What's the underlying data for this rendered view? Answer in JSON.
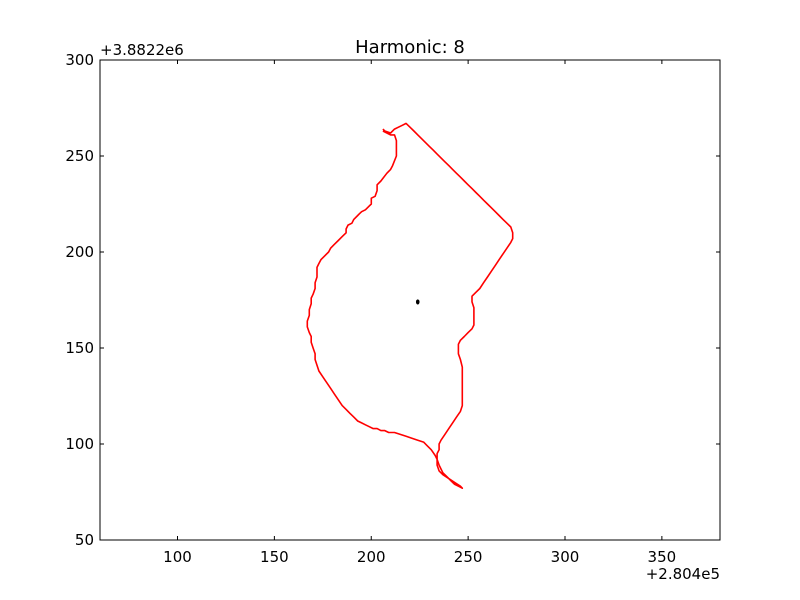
{
  "chart_data": {
    "type": "line",
    "title": "Harmonic: 8",
    "xlim": [
      60,
      380
    ],
    "ylim": [
      50,
      300
    ],
    "x_ticks": [
      100,
      150,
      200,
      250,
      300,
      350
    ],
    "y_ticks": [
      50,
      100,
      150,
      200,
      250,
      300
    ],
    "x_tick_labels": [
      "100",
      "150",
      "200",
      "250",
      "300",
      "350"
    ],
    "y_tick_labels": [
      "50",
      "100",
      "150",
      "200",
      "250",
      "300"
    ],
    "x_offset_label": "+2.804e5",
    "y_offset_label": "+3.8822e6",
    "grid": false,
    "series": [
      {
        "color": "#ff0000",
        "style": "line",
        "points": [
          [
            206,
            263
          ],
          [
            210,
            261
          ],
          [
            212,
            261
          ],
          [
            213,
            258
          ],
          [
            213,
            250
          ],
          [
            211,
            245
          ],
          [
            210,
            243
          ],
          [
            208,
            241
          ],
          [
            205,
            237
          ],
          [
            203,
            235
          ],
          [
            203,
            232
          ],
          [
            202,
            229
          ],
          [
            200,
            228
          ],
          [
            200,
            225
          ],
          [
            199,
            224
          ],
          [
            197,
            222
          ],
          [
            195,
            221
          ],
          [
            194,
            220
          ],
          [
            193,
            219
          ],
          [
            191,
            217
          ],
          [
            190,
            215
          ],
          [
            188,
            214
          ],
          [
            187,
            212
          ],
          [
            187,
            210
          ],
          [
            185,
            208
          ],
          [
            183,
            206
          ],
          [
            181,
            204
          ],
          [
            179,
            202
          ],
          [
            178,
            200
          ],
          [
            176,
            198
          ],
          [
            174,
            196
          ],
          [
            173,
            194
          ],
          [
            172,
            192
          ],
          [
            172,
            190
          ],
          [
            172,
            187
          ],
          [
            171,
            184
          ],
          [
            171,
            181
          ],
          [
            170,
            178
          ],
          [
            169,
            176
          ],
          [
            169,
            173
          ],
          [
            168,
            170
          ],
          [
            168,
            167
          ],
          [
            167,
            164
          ],
          [
            167,
            161
          ],
          [
            168,
            158
          ],
          [
            169,
            156
          ],
          [
            169,
            153
          ],
          [
            170,
            150
          ],
          [
            171,
            147
          ],
          [
            171,
            144
          ],
          [
            172,
            141
          ],
          [
            173,
            138
          ],
          [
            175,
            135
          ],
          [
            177,
            132
          ],
          [
            179,
            129
          ],
          [
            181,
            126
          ],
          [
            183,
            123
          ],
          [
            185,
            120
          ],
          [
            187,
            118
          ],
          [
            189,
            116
          ],
          [
            191,
            114
          ],
          [
            193,
            112
          ],
          [
            195,
            111
          ],
          [
            197,
            110
          ],
          [
            199,
            109
          ],
          [
            201,
            108
          ],
          [
            203,
            108
          ],
          [
            205,
            107
          ],
          [
            207,
            107
          ],
          [
            209,
            106
          ],
          [
            212,
            106
          ],
          [
            215,
            105
          ],
          [
            218,
            104
          ],
          [
            221,
            103
          ],
          [
            224,
            102
          ],
          [
            227,
            101
          ],
          [
            229,
            99
          ],
          [
            231,
            97
          ],
          [
            233,
            94
          ],
          [
            234,
            92
          ],
          [
            235,
            89
          ],
          [
            236,
            87
          ],
          [
            237,
            85
          ],
          [
            239,
            83
          ],
          [
            241,
            81
          ],
          [
            243,
            79
          ],
          [
            245,
            78
          ],
          [
            247,
            77
          ],
          [
            246,
            78
          ],
          [
            243,
            80
          ],
          [
            240,
            82
          ],
          [
            237,
            84
          ],
          [
            235,
            86
          ],
          [
            234,
            89
          ],
          [
            234,
            92
          ],
          [
            234,
            95
          ],
          [
            235,
            97
          ],
          [
            235,
            100
          ],
          [
            236,
            102
          ],
          [
            238,
            105
          ],
          [
            240,
            108
          ],
          [
            242,
            111
          ],
          [
            244,
            114
          ],
          [
            246,
            117
          ],
          [
            247,
            120
          ],
          [
            247,
            125
          ],
          [
            247,
            130
          ],
          [
            247,
            135
          ],
          [
            247,
            140
          ],
          [
            246,
            144
          ],
          [
            245,
            147
          ],
          [
            245,
            150
          ],
          [
            245,
            152
          ],
          [
            246,
            154
          ],
          [
            248,
            156
          ],
          [
            250,
            158
          ],
          [
            252,
            160
          ],
          [
            253,
            162
          ],
          [
            253,
            165
          ],
          [
            253,
            168
          ],
          [
            253,
            171
          ],
          [
            252,
            174
          ],
          [
            252,
            177
          ],
          [
            254,
            179
          ],
          [
            256,
            181
          ],
          [
            258,
            184
          ],
          [
            260,
            187
          ],
          [
            262,
            190
          ],
          [
            264,
            193
          ],
          [
            266,
            196
          ],
          [
            268,
            199
          ],
          [
            270,
            202
          ],
          [
            272,
            205
          ],
          [
            273,
            207
          ],
          [
            273,
            210
          ],
          [
            272,
            213
          ],
          [
            270,
            215
          ],
          [
            268,
            217
          ],
          [
            266,
            219
          ],
          [
            264,
            221
          ],
          [
            262,
            223
          ],
          [
            260,
            225
          ],
          [
            258,
            227
          ],
          [
            256,
            229
          ],
          [
            254,
            231
          ],
          [
            252,
            233
          ],
          [
            250,
            235
          ],
          [
            248,
            237
          ],
          [
            246,
            239
          ],
          [
            244,
            241
          ],
          [
            242,
            243
          ],
          [
            240,
            245
          ],
          [
            238,
            247
          ],
          [
            236,
            249
          ],
          [
            234,
            251
          ],
          [
            232,
            253
          ],
          [
            230,
            255
          ],
          [
            228,
            257
          ],
          [
            226,
            259
          ],
          [
            224,
            261
          ],
          [
            222,
            263
          ],
          [
            220,
            265
          ],
          [
            218,
            267
          ],
          [
            216,
            266
          ],
          [
            214,
            265
          ],
          [
            212,
            264
          ],
          [
            210,
            262
          ],
          [
            207,
            263
          ],
          [
            206,
            264
          ]
        ]
      },
      {
        "color": "#000000",
        "style": "marker",
        "points": [
          [
            224,
            174
          ]
        ]
      }
    ]
  }
}
